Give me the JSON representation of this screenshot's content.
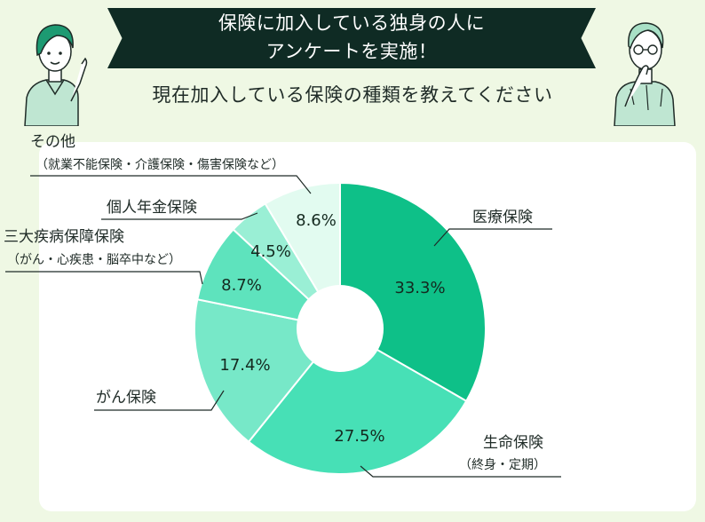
{
  "header": {
    "title_line1": "保険に加入している独身の人に",
    "title_line2": "アンケートを実施！",
    "subtitle": "現在加入している保険の種類を教えてください"
  },
  "chart_data": {
    "type": "pie",
    "title": "現在加入している保険の種類を教えてください",
    "donut": true,
    "slices": [
      {
        "label": "医療保険",
        "sublabel": "",
        "value": 33.3,
        "value_text": "33.3%",
        "color": "#0ec088"
      },
      {
        "label": "生命保険",
        "sublabel": "（終身・定期）",
        "value": 27.5,
        "value_text": "27.5%",
        "color": "#47e0b6"
      },
      {
        "label": "がん保険",
        "sublabel": "",
        "value": 17.4,
        "value_text": "17.4%",
        "color": "#77e8c8"
      },
      {
        "label": "三大疾病保障保険",
        "sublabel": "（がん・心疾患・脳卒中など）",
        "value": 8.7,
        "value_text": "8.7%",
        "color": "#5ee3bd"
      },
      {
        "label": "個人年金保険",
        "sublabel": "",
        "value": 4.5,
        "value_text": "4.5%",
        "color": "#9aefd5"
      },
      {
        "label": "その他",
        "sublabel": "（就業不能保険・介護保険・傷害保険など）",
        "value": 8.6,
        "value_text": "8.6%",
        "color": "#e2fbf0"
      }
    ]
  }
}
